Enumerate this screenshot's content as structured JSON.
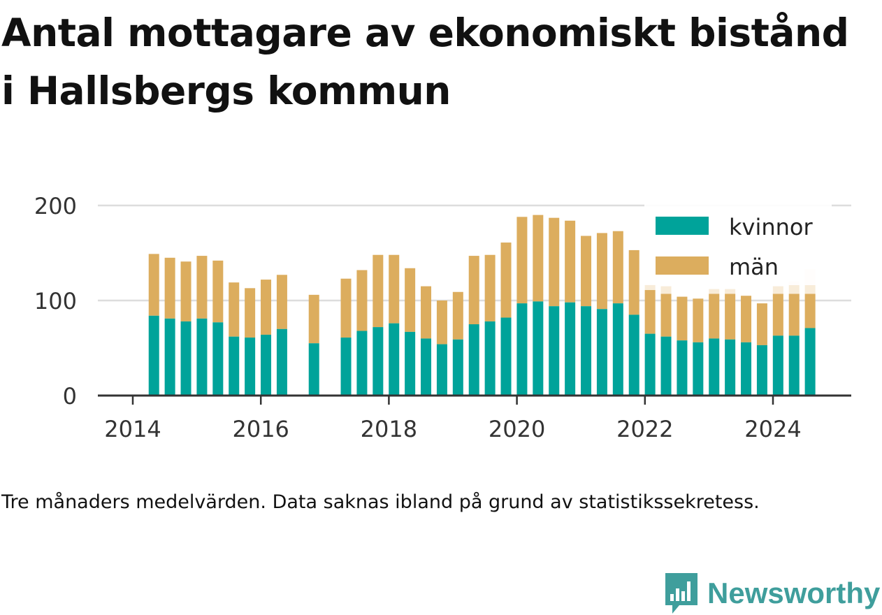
{
  "header": {
    "title": "Antal mottagare av ekonomiskt bistånd i Hallsbergs kommun"
  },
  "footer": {
    "note": "Tre månaders medelvärden. Data saknas ibland på grund av statistikssekretess.",
    "brand": "Newsworthy"
  },
  "colors": {
    "women": "#00a39a",
    "men": "#dcad5e",
    "faded": "#f8ecd9",
    "grid": "#dddddd",
    "axis": "#333333",
    "brand": "#3f9e9c"
  },
  "icons": {
    "brand": "bar-chart-speech-bubble-icon"
  },
  "chart_data": {
    "type": "bar",
    "stacked": true,
    "ylim": [
      0,
      200
    ],
    "yticks": [
      0,
      100,
      200
    ],
    "xlim": [
      2013.6,
      2025.0
    ],
    "xticks": [
      2014,
      2016,
      2018,
      2020,
      2022,
      2024
    ],
    "grid": true,
    "legend_position": "top-right",
    "x": [
      2014.33,
      2014.58,
      2014.83,
      2015.08,
      2015.33,
      2015.58,
      2015.83,
      2016.08,
      2016.33,
      2016.83,
      2017.33,
      2017.58,
      2017.83,
      2018.08,
      2018.33,
      2018.58,
      2018.83,
      2019.08,
      2019.33,
      2019.58,
      2019.83,
      2020.08,
      2020.33,
      2020.58,
      2020.83,
      2021.08,
      2021.33,
      2021.58,
      2021.83,
      2022.08,
      2022.33,
      2022.58,
      2022.83,
      2023.08,
      2023.33,
      2023.58,
      2023.83,
      2024.08,
      2024.33,
      2024.58
    ],
    "series": [
      {
        "name": "kvinnor",
        "values": [
          84,
          81,
          78,
          81,
          77,
          62,
          61,
          64,
          70,
          55,
          61,
          68,
          72,
          76,
          67,
          60,
          54,
          59,
          75,
          78,
          82,
          97,
          99,
          94,
          98,
          94,
          91,
          97,
          85,
          65,
          62,
          58,
          56,
          60,
          59,
          56,
          53,
          63,
          63,
          71
        ]
      },
      {
        "name": "män",
        "values": [
          65,
          64,
          63,
          66,
          65,
          57,
          52,
          58,
          57,
          51,
          62,
          64,
          76,
          72,
          67,
          55,
          46,
          50,
          72,
          70,
          79,
          91,
          91,
          93,
          86,
          74,
          80,
          76,
          68,
          46,
          45,
          46,
          46,
          47,
          48,
          49,
          44,
          44,
          44,
          36
        ]
      }
    ],
    "faded_top": [
      null,
      null,
      null,
      null,
      null,
      null,
      null,
      null,
      null,
      null,
      null,
      null,
      null,
      null,
      null,
      null,
      null,
      null,
      null,
      null,
      null,
      null,
      null,
      null,
      null,
      null,
      null,
      null,
      null,
      117,
      115,
      null,
      null,
      112,
      112,
      null,
      null,
      115,
      120,
      133
    ]
  }
}
